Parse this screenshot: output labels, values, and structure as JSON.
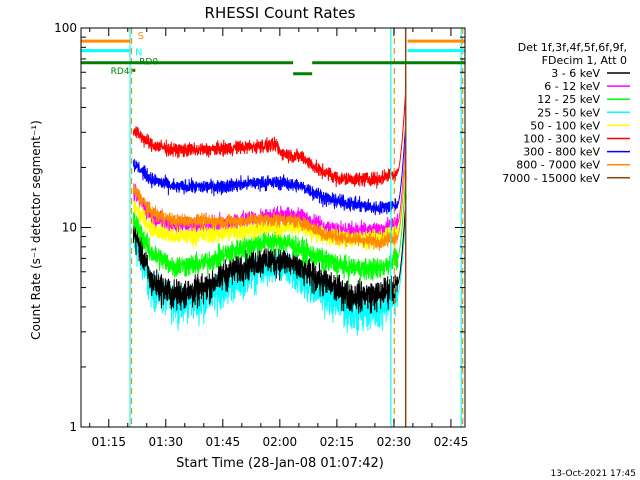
{
  "chart_data": {
    "type": "line",
    "title": "RHESSI Count Rates",
    "xlabel": "Start Time (28-Jan-08 01:07:42)",
    "ylabel": "Count Rate (s⁻¹ detector segment⁻¹)",
    "y_scale": "log",
    "ylim": [
      1,
      100
    ],
    "xlim_minutes": [
      67.7,
      168.7
    ],
    "x_ticks": [
      {
        "label": "01:15",
        "min": 75
      },
      {
        "label": "01:30",
        "min": 90
      },
      {
        "label": "01:45",
        "min": 105
      },
      {
        "label": "02:00",
        "min": 120
      },
      {
        "label": "02:15",
        "min": 135
      },
      {
        "label": "02:30",
        "min": 150
      },
      {
        "label": "02:45",
        "min": 165
      }
    ],
    "y_ticks": [
      {
        "label": "1",
        "value": 1
      },
      {
        "label": "10",
        "value": 10
      },
      {
        "label": "100",
        "value": 100
      }
    ],
    "legend_header": [
      "Det 1f,3f,4f,5f,6f,9f,",
      "FDecim 1, Att 0"
    ],
    "legend_position": "right",
    "series": [
      {
        "name": "3 - 6 keV",
        "color": "#000000",
        "anchors": [
          [
            81.5,
            9.5
          ],
          [
            86,
            5.4
          ],
          [
            92,
            4.6
          ],
          [
            100,
            4.9
          ],
          [
            106,
            5.9
          ],
          [
            114,
            6.8
          ],
          [
            121,
            6.9
          ],
          [
            126,
            6.1
          ],
          [
            132,
            5.3
          ],
          [
            138,
            4.6
          ],
          [
            146,
            4.6
          ],
          [
            151,
            5.2
          ]
        ],
        "noise": 0.15
      },
      {
        "name": "6 - 12 keV",
        "color": "#ff00ff",
        "anchors": [
          [
            81.5,
            15
          ],
          [
            86,
            11.5
          ],
          [
            92,
            10.2
          ],
          [
            100,
            10.3
          ],
          [
            106,
            10.5
          ],
          [
            114,
            11.2
          ],
          [
            121,
            11.5
          ],
          [
            126,
            11.3
          ],
          [
            132,
            10
          ],
          [
            138,
            9.6
          ],
          [
            146,
            9.6
          ],
          [
            151,
            10.5
          ]
        ],
        "noise": 0.09
      },
      {
        "name": "12 - 25 keV",
        "color": "#00ff00",
        "anchors": [
          [
            81.5,
            11
          ],
          [
            86,
            7.5
          ],
          [
            92,
            6.4
          ],
          [
            100,
            6.6
          ],
          [
            106,
            7.4
          ],
          [
            114,
            8.4
          ],
          [
            121,
            8.6
          ],
          [
            126,
            7.7
          ],
          [
            132,
            6.8
          ],
          [
            138,
            6.3
          ],
          [
            146,
            6.2
          ],
          [
            151,
            7
          ]
        ],
        "noise": 0.11
      },
      {
        "name": "25 - 50 keV",
        "color": "#00ffff",
        "anchors": [
          [
            81.5,
            8.5
          ],
          [
            86,
            5
          ],
          [
            92,
            4.2
          ],
          [
            100,
            4.3
          ],
          [
            106,
            5.1
          ],
          [
            114,
            6.1
          ],
          [
            121,
            6.3
          ],
          [
            126,
            5.4
          ],
          [
            132,
            4.6
          ],
          [
            138,
            3.8
          ],
          [
            146,
            3.9
          ],
          [
            151,
            4.6
          ]
        ],
        "noise": 0.17
      },
      {
        "name": "50 - 100 keV",
        "color": "#ffff00",
        "anchors": [
          [
            81.5,
            13
          ],
          [
            86,
            10
          ],
          [
            92,
            9
          ],
          [
            100,
            9.2
          ],
          [
            106,
            9.4
          ],
          [
            114,
            9.9
          ],
          [
            121,
            10.1
          ],
          [
            126,
            10
          ],
          [
            132,
            9.1
          ],
          [
            138,
            8.8
          ],
          [
            146,
            8.8
          ],
          [
            151,
            9.5
          ]
        ],
        "noise": 0.09
      },
      {
        "name": "100 - 300 keV",
        "color": "#ff0000",
        "anchors": [
          [
            81.5,
            31
          ],
          [
            86,
            26
          ],
          [
            92,
            24.5
          ],
          [
            100,
            24.5
          ],
          [
            106,
            25
          ],
          [
            114,
            25.5
          ],
          [
            119,
            26
          ],
          [
            120,
            24
          ],
          [
            121,
            23.5
          ],
          [
            126,
            22.5
          ],
          [
            128,
            21
          ],
          [
            130,
            19.5
          ],
          [
            136,
            17.5
          ],
          [
            146,
            17.5
          ],
          [
            151,
            19
          ]
        ],
        "noise": 0.07
      },
      {
        "name": "300 - 800 keV",
        "color": "#0000ff",
        "anchors": [
          [
            81.5,
            21
          ],
          [
            86,
            17.5
          ],
          [
            92,
            16
          ],
          [
            100,
            16
          ],
          [
            106,
            16.2
          ],
          [
            114,
            16.8
          ],
          [
            121,
            16.8
          ],
          [
            126,
            16
          ],
          [
            132,
            14
          ],
          [
            138,
            13.2
          ],
          [
            146,
            12.5
          ],
          [
            151,
            13
          ]
        ],
        "noise": 0.07
      },
      {
        "name": "800 - 7000 keV",
        "color": "#ff8c00",
        "anchors": [
          [
            81.5,
            15.5
          ],
          [
            86,
            12
          ],
          [
            92,
            10.8
          ],
          [
            100,
            10.8
          ],
          [
            106,
            10.7
          ],
          [
            114,
            11
          ],
          [
            121,
            11
          ],
          [
            126,
            10.6
          ],
          [
            132,
            9.2
          ],
          [
            138,
            8.8
          ],
          [
            146,
            8.5
          ],
          [
            151,
            9
          ]
        ],
        "noise": 0.07
      },
      {
        "name": "7000 - 15000 keV",
        "color": "#8b4513",
        "anchors": [],
        "noise": 0
      }
    ],
    "spike": {
      "start": 151,
      "end": 153.2,
      "peak": 55
    },
    "annotations": [
      {
        "label": "S",
        "color": "#ff8c00"
      },
      {
        "label": "N",
        "color": "#00ffff"
      },
      {
        "label": "RD0",
        "color": "#008000"
      },
      {
        "label": "RD4",
        "color": "#008000"
      }
    ],
    "timestamp": "13-Oct-2021 17:45"
  }
}
